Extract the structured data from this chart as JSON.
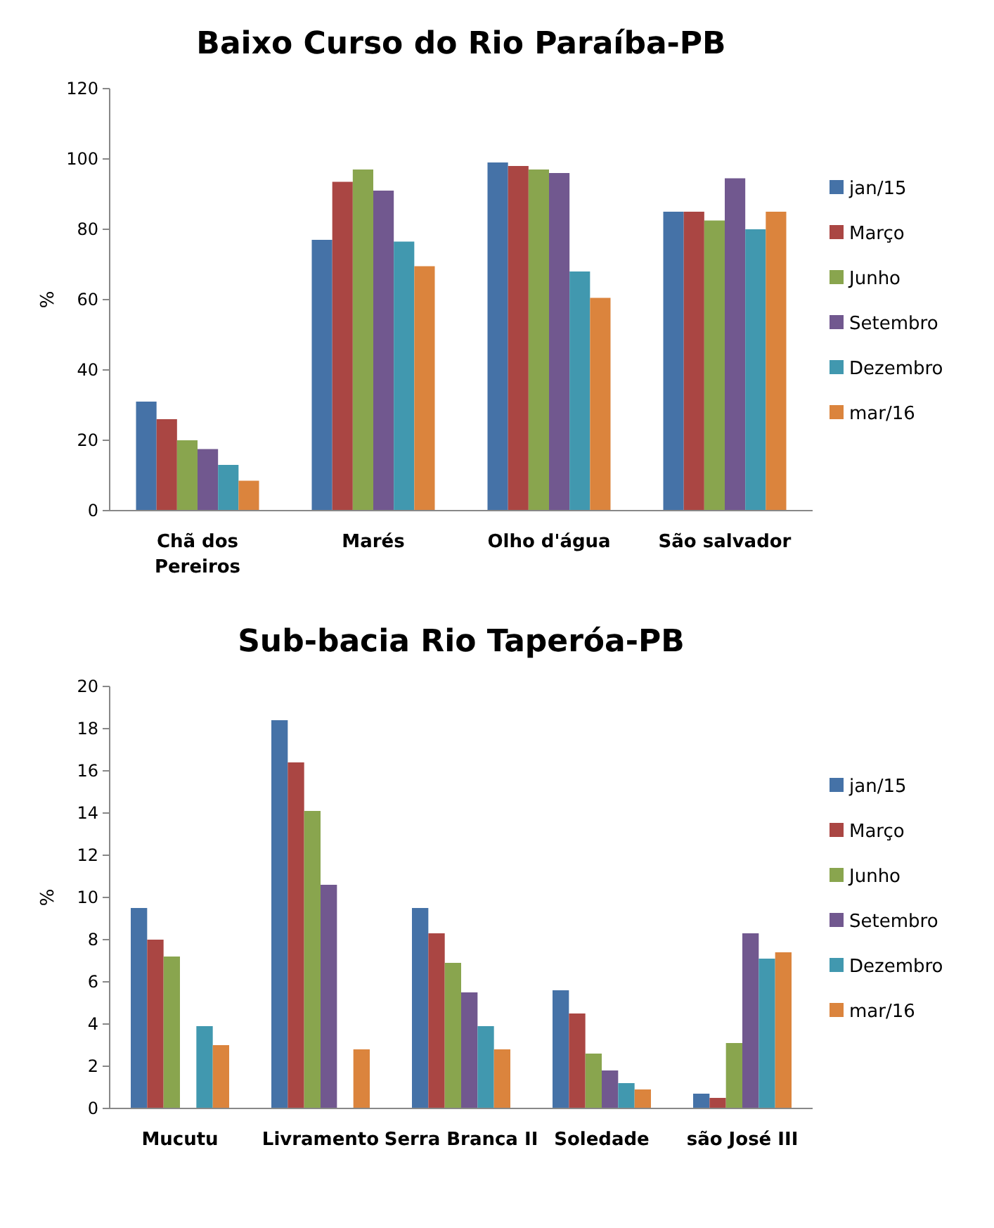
{
  "chart_data": [
    {
      "type": "bar",
      "title": "Baixo Curso do Rio Paraíba-PB",
      "ylabel": "%",
      "categories": [
        "Chã dos Pereiros",
        "Marés",
        "Olho d'água",
        "São salvador"
      ],
      "ylim": [
        0,
        120
      ],
      "yticks": [
        0,
        20,
        40,
        60,
        80,
        100,
        120
      ],
      "legend": "right",
      "series": [
        {
          "name": "jan/15",
          "color": "#4572a7",
          "values": [
            31,
            77,
            99,
            85
          ]
        },
        {
          "name": "Março",
          "color": "#aa4643",
          "values": [
            26,
            93.5,
            98,
            85
          ]
        },
        {
          "name": "Junho",
          "color": "#89a54e",
          "values": [
            20,
            97,
            97,
            82.5
          ]
        },
        {
          "name": "Setembro",
          "color": "#71588f",
          "values": [
            17.5,
            91,
            96,
            94.5
          ]
        },
        {
          "name": "Dezembro",
          "color": "#4198af",
          "values": [
            13,
            76.5,
            68,
            80
          ]
        },
        {
          "name": "mar/16",
          "color": "#db843d",
          "values": [
            8.5,
            69.5,
            60.5,
            85
          ]
        }
      ]
    },
    {
      "type": "bar",
      "title": "Sub-bacia Rio Taperóa-PB",
      "ylabel": "%",
      "categories": [
        "Mucutu",
        "Livramento",
        "Serra Branca II",
        "Soledade",
        "são José III"
      ],
      "ylim": [
        0,
        20
      ],
      "yticks": [
        0,
        2,
        4,
        6,
        8,
        10,
        12,
        14,
        16,
        18,
        20
      ],
      "legend": "right",
      "series": [
        {
          "name": "jan/15",
          "color": "#4572a7",
          "values": [
            9.5,
            18.4,
            9.5,
            5.6,
            0.7
          ]
        },
        {
          "name": "Março",
          "color": "#aa4643",
          "values": [
            8,
            16.4,
            8.3,
            4.5,
            0.5
          ]
        },
        {
          "name": "Junho",
          "color": "#89a54e",
          "values": [
            7.2,
            14.1,
            6.9,
            2.6,
            3.1
          ]
        },
        {
          "name": "Setembro",
          "color": "#71588f",
          "values": [
            null,
            10.6,
            5.5,
            1.8,
            8.3
          ]
        },
        {
          "name": "Dezembro",
          "color": "#4198af",
          "values": [
            3.9,
            null,
            3.9,
            1.2,
            7.1
          ]
        },
        {
          "name": "mar/16",
          "color": "#db843d",
          "values": [
            3.0,
            2.8,
            2.8,
            0.9,
            7.4
          ]
        }
      ]
    }
  ]
}
